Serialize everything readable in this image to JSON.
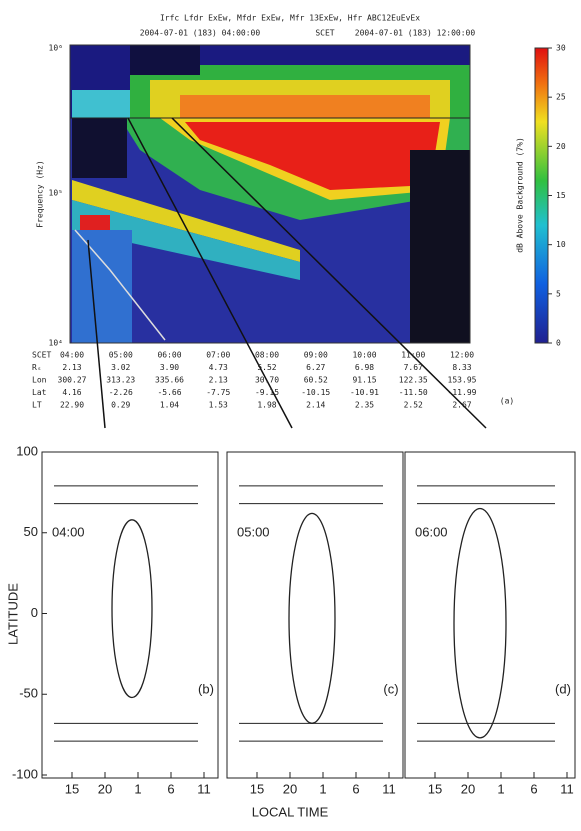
{
  "header": {
    "title": "Irfc Lfdr ExEw, Mfdr ExEw, Mfr 13ExEw, Hfr ABC12EuEvEx",
    "start": "2004-07-01 (183) 04:00:00",
    "frame": "SCET",
    "end": "2004-07-01 (183) 12:00:00"
  },
  "panel_a": {
    "y_label": "Frequency (Hz)",
    "y_ticks": [
      "10⁶",
      "10⁵",
      "10⁴"
    ],
    "colorbar_label": "dB Above Background (7%)",
    "colorbar_ticks": [
      "30",
      "25",
      "20",
      "15",
      "10",
      "5",
      "0"
    ],
    "label": "(a)",
    "table": {
      "rows": [
        [
          "SCET",
          "04:00",
          "05:00",
          "06:00",
          "07:00",
          "08:00",
          "09:00",
          "10:00",
          "11:00",
          "12:00"
        ],
        [
          "Rₛ",
          "2.13",
          "3.02",
          "3.90",
          "4.73",
          "5.52",
          "6.27",
          "6.98",
          "7.67",
          "8.33"
        ],
        [
          "Lon",
          "300.27",
          "313.23",
          "335.66",
          "2.13",
          "30.70",
          "60.52",
          "91.15",
          "122.35",
          "153.95"
        ],
        [
          "Lat",
          "4.16",
          "-2.26",
          "-5.66",
          "-7.75",
          "-9.15",
          "-10.15",
          "-10.91",
          "-11.50",
          "-11.99"
        ],
        [
          "LT",
          "22.90",
          "0.29",
          "1.04",
          "1.53",
          "1.98",
          "2.14",
          "2.35",
          "2.52",
          "2.67"
        ]
      ]
    }
  },
  "lower": {
    "y_label": "LATITUDE",
    "x_label": "LOCAL TIME",
    "y_ticks": [
      "100",
      "50",
      "0",
      "-50",
      "-100"
    ],
    "x_ticks": [
      "15",
      "20",
      "1",
      "6",
      "11"
    ],
    "panels": [
      {
        "time": "04:00",
        "label": "(b)"
      },
      {
        "time": "05:00",
        "label": "(c)"
      },
      {
        "time": "06:00",
        "label": "(d)"
      }
    ]
  }
}
